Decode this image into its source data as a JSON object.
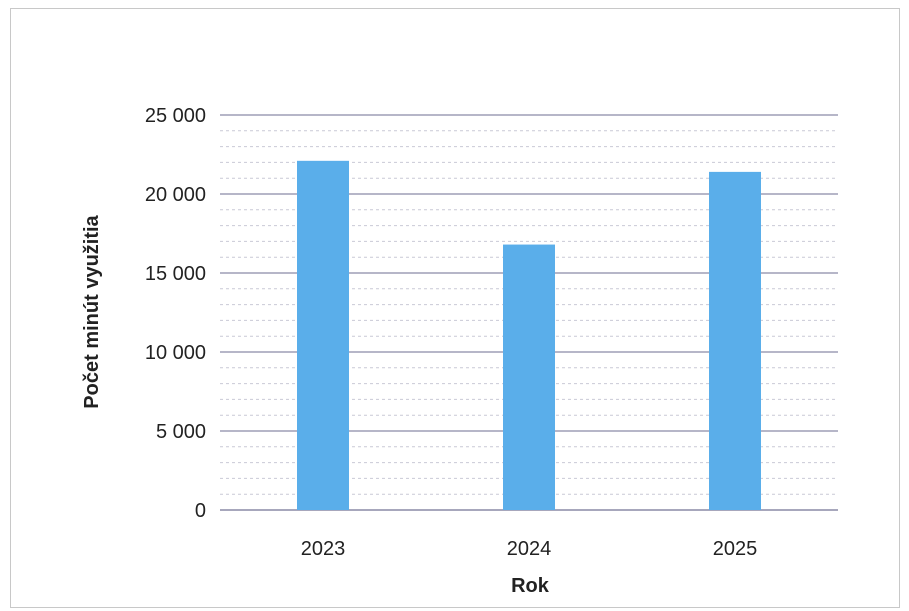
{
  "chart_data": {
    "type": "bar",
    "categories": [
      "2023",
      "2024",
      "2025"
    ],
    "values": [
      22100,
      16800,
      21400
    ],
    "xlabel": "Rok",
    "ylabel": "Počet minút využitia",
    "ylim": [
      0,
      25000
    ],
    "yticks": [
      0,
      5000,
      10000,
      15000,
      20000,
      25000
    ],
    "ytick_labels": [
      "0",
      "5 000",
      "10 000",
      "15 000",
      "20 000",
      "25 000"
    ],
    "grid": true,
    "legend": "none",
    "bar_color": "#5aaeea",
    "grid_color": "#8a8aa6"
  }
}
